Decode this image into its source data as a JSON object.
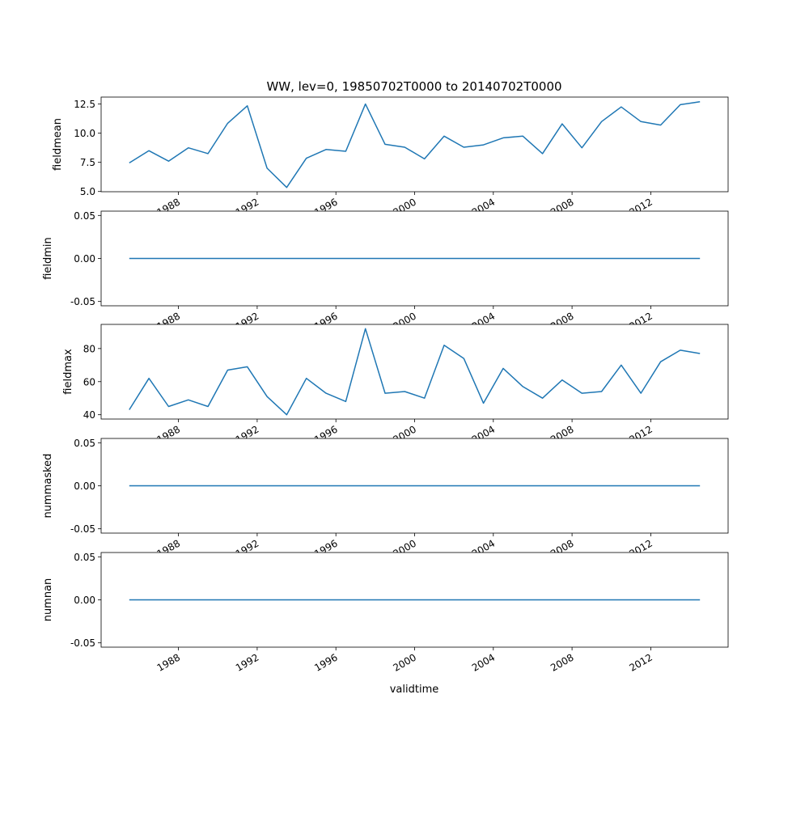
{
  "chart_data": {
    "type": "line",
    "title": "WW, lev=0, 19850702T0000 to 20140702T0000",
    "xlabel": "validtime",
    "x_years": [
      1985,
      1986,
      1987,
      1988,
      1989,
      1990,
      1991,
      1992,
      1993,
      1994,
      1995,
      1996,
      1997,
      1998,
      1999,
      2000,
      2001,
      2002,
      2003,
      2004,
      2005,
      2006,
      2007,
      2008,
      2009,
      2010,
      2011,
      2012,
      2013,
      2014
    ],
    "x_date_suffix": "-07-02",
    "xticks": [
      "1988",
      "1992",
      "1996",
      "2000",
      "2004",
      "2008",
      "2012"
    ],
    "xlim_years": [
      1984.07,
      2015.93
    ],
    "line_color": "#1f77b4",
    "panels": [
      {
        "ylabel": "fieldmean",
        "ylim": [
          4.98,
          13.1
        ],
        "yticks": [
          5.0,
          7.5,
          10.0,
          12.5
        ],
        "ytick_labels": [
          "5.0",
          "7.5",
          "10.0",
          "12.5"
        ],
        "values": [
          7.45,
          8.5,
          7.6,
          8.75,
          8.25,
          10.85,
          12.35,
          7.0,
          5.35,
          7.85,
          8.6,
          8.45,
          12.5,
          9.05,
          8.8,
          7.8,
          9.75,
          8.8,
          9.0,
          9.6,
          9.75,
          8.25,
          10.8,
          8.75,
          11.0,
          12.25,
          11.0,
          10.7,
          12.45,
          12.7
        ]
      },
      {
        "ylabel": "fieldmin",
        "ylim": [
          -0.055,
          0.055
        ],
        "yticks": [
          -0.05,
          0.0,
          0.05
        ],
        "ytick_labels": [
          "-0.05",
          "0.00",
          "0.05"
        ],
        "values": [
          0,
          0,
          0,
          0,
          0,
          0,
          0,
          0,
          0,
          0,
          0,
          0,
          0,
          0,
          0,
          0,
          0,
          0,
          0,
          0,
          0,
          0,
          0,
          0,
          0,
          0,
          0,
          0,
          0,
          0
        ]
      },
      {
        "ylabel": "fieldmax",
        "ylim": [
          37.4,
          94.6
        ],
        "yticks": [
          40,
          60,
          80
        ],
        "ytick_labels": [
          "40",
          "60",
          "80"
        ],
        "values": [
          43,
          62,
          45,
          49,
          45,
          67,
          69,
          51,
          40,
          62,
          53,
          48,
          92,
          53,
          54,
          50,
          82,
          74,
          47,
          68,
          57,
          50,
          61,
          53,
          54,
          70,
          53,
          72,
          79,
          77
        ]
      },
      {
        "ylabel": "nummasked",
        "ylim": [
          -0.055,
          0.055
        ],
        "yticks": [
          -0.05,
          0.0,
          0.05
        ],
        "ytick_labels": [
          "-0.05",
          "0.00",
          "0.05"
        ],
        "values": [
          0,
          0,
          0,
          0,
          0,
          0,
          0,
          0,
          0,
          0,
          0,
          0,
          0,
          0,
          0,
          0,
          0,
          0,
          0,
          0,
          0,
          0,
          0,
          0,
          0,
          0,
          0,
          0,
          0,
          0
        ]
      },
      {
        "ylabel": "numnan",
        "ylim": [
          -0.055,
          0.055
        ],
        "yticks": [
          -0.05,
          0.0,
          0.05
        ],
        "ytick_labels": [
          "-0.05",
          "0.00",
          "0.05"
        ],
        "values": [
          0,
          0,
          0,
          0,
          0,
          0,
          0,
          0,
          0,
          0,
          0,
          0,
          0,
          0,
          0,
          0,
          0,
          0,
          0,
          0,
          0,
          0,
          0,
          0,
          0,
          0,
          0,
          0,
          0,
          0
        ]
      }
    ]
  }
}
